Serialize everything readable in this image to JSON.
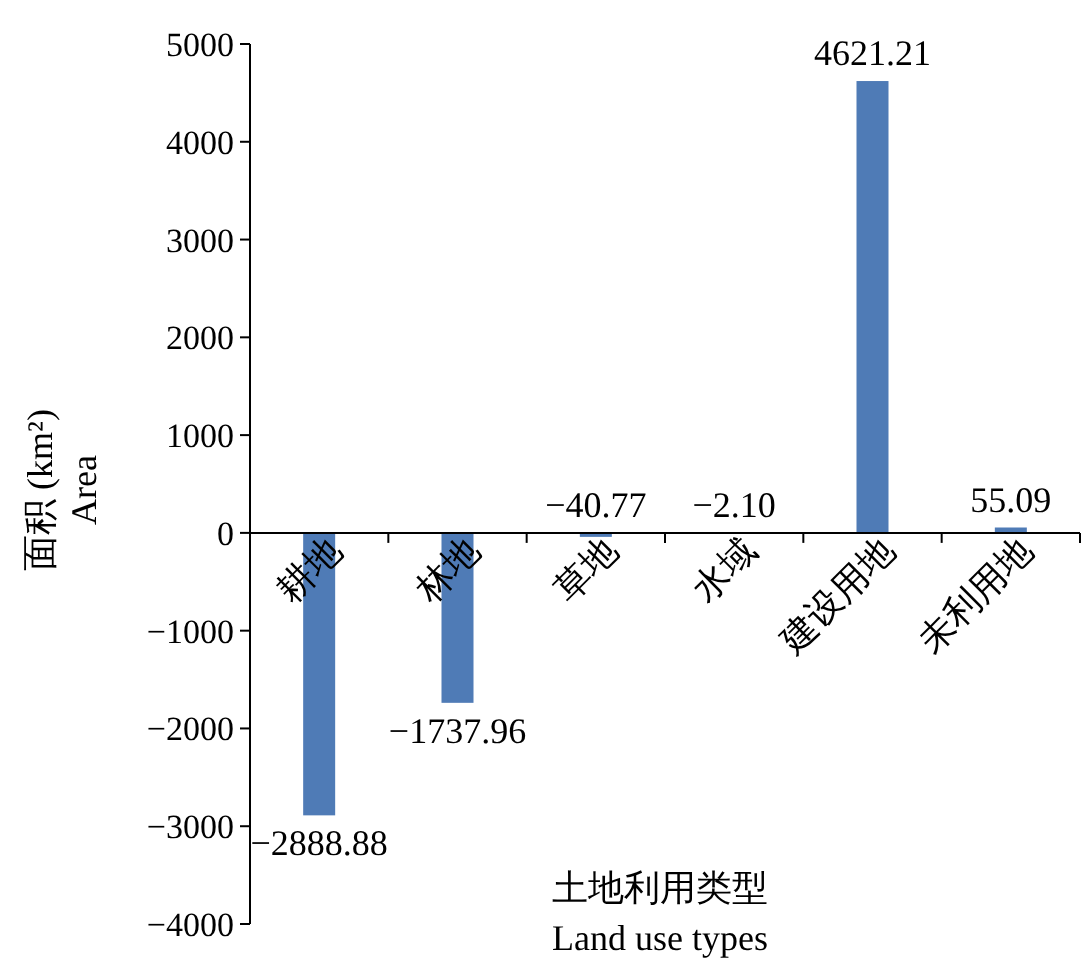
{
  "chart_data": {
    "type": "bar",
    "xlabel": "土地利用类型\nLand use types",
    "ylabel": "面积 (km²)\nArea",
    "categories": [
      "耕地",
      "林地",
      "草地",
      "水域",
      "建设用地",
      "未利用地"
    ],
    "values": [
      -2888.88,
      -1737.96,
      -40.77,
      -2.1,
      4621.21,
      55.09
    ],
    "value_labels": [
      "−2888.88",
      "−1737.96",
      "−40.77",
      "−2.10",
      "4621.21",
      "55.09"
    ],
    "color": "#4f7bb6",
    "ylim": [
      -4000,
      5000
    ],
    "yticks": [
      {
        "value": -4000,
        "label": "−4000"
      },
      {
        "value": -3000,
        "label": "−3000"
      },
      {
        "value": -2000,
        "label": "−2000"
      },
      {
        "value": -1000,
        "label": "−1000"
      },
      0,
      1000,
      2000,
      3000,
      4000,
      5000
    ],
    "grid": false
  }
}
